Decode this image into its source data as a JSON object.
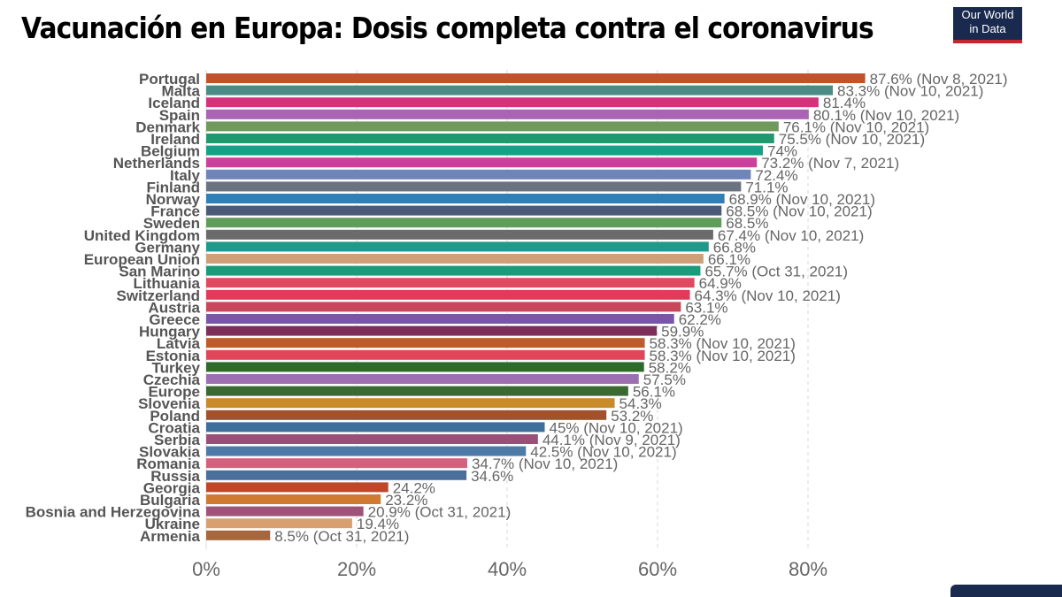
{
  "header": {
    "title": "Vacunación en Europa: Dosis completa contra el coronavirus",
    "logo_line1": "Our World",
    "logo_line2": "in Data"
  },
  "chart_data": {
    "type": "bar",
    "orientation": "horizontal",
    "title": "Vacunación en Europa: Dosis completa contra el coronavirus",
    "xlim": [
      0,
      100
    ],
    "x_ticks": [
      0,
      20,
      40,
      60,
      80
    ],
    "x_tick_labels": [
      "0%",
      "20%",
      "40%",
      "60%",
      "80%"
    ],
    "grid": "vertical dashed",
    "legend": "none",
    "categories": [
      "Portugal",
      "Malta",
      "Iceland",
      "Spain",
      "Denmark",
      "Ireland",
      "Belgium",
      "Netherlands",
      "Italy",
      "Finland",
      "Norway",
      "France",
      "Sweden",
      "United Kingdom",
      "Germany",
      "European Union",
      "San Marino",
      "Lithuania",
      "Switzerland",
      "Austria",
      "Greece",
      "Hungary",
      "Latvia",
      "Estonia",
      "Turkey",
      "Czechia",
      "Europe",
      "Slovenia",
      "Poland",
      "Croatia",
      "Serbia",
      "Slovakia",
      "Romania",
      "Russia",
      "Georgia",
      "Bulgaria",
      "Bosnia and Herzegovina",
      "Ukraine",
      "Armenia"
    ],
    "values": [
      87.6,
      83.3,
      81.4,
      80.1,
      76.1,
      75.5,
      74,
      73.2,
      72.4,
      71.1,
      68.9,
      68.5,
      68.5,
      67.4,
      66.8,
      66.1,
      65.7,
      64.9,
      64.3,
      63.1,
      62.2,
      59.9,
      58.3,
      58.3,
      58.2,
      57.5,
      56.1,
      54.3,
      53.2,
      45,
      44.1,
      42.5,
      34.7,
      34.6,
      24.2,
      23.2,
      20.9,
      19.4,
      8.5
    ],
    "value_labels": [
      "87.6% (Nov 8, 2021)",
      "83.3% (Nov 10, 2021)",
      "81.4%",
      "80.1% (Nov 10, 2021)",
      "76.1% (Nov 10, 2021)",
      "75.5% (Nov 10, 2021)",
      "74%",
      "73.2% (Nov 7, 2021)",
      "72.4%",
      "71.1%",
      "68.9% (Nov 10, 2021)",
      "68.5% (Nov 10, 2021)",
      "68.5%",
      "67.4% (Nov 10, 2021)",
      "66.8%",
      "66.1%",
      "65.7% (Oct 31, 2021)",
      "64.9%",
      "64.3% (Nov 10, 2021)",
      "63.1%",
      "62.2%",
      "59.9%",
      "58.3% (Nov 10, 2021)",
      "58.3% (Nov 10, 2021)",
      "58.2%",
      "57.5%",
      "56.1%",
      "54.3%",
      "53.2%",
      "45% (Nov 10, 2021)",
      "44.1% (Nov 9, 2021)",
      "42.5% (Nov 10, 2021)",
      "34.7% (Nov 10, 2021)",
      "34.6%",
      "24.2%",
      "23.2%",
      "20.9% (Oct 31, 2021)",
      "19.4%",
      "8.5% (Oct 31, 2021)"
    ],
    "colors": [
      "#c0522d",
      "#4a8c85",
      "#d6327c",
      "#a964b4",
      "#6f9a5b",
      "#1f9a6f",
      "#16a085",
      "#cc3f9a",
      "#6f84b8",
      "#6b7280",
      "#2f80b8",
      "#4b5a78",
      "#5f9e5a",
      "#6b6b6b",
      "#1f9a8a",
      "#cf9f77",
      "#1a9b7a",
      "#e04a60",
      "#e23a5a",
      "#c8475a",
      "#7a55a8",
      "#7d2f5a",
      "#c05a2a",
      "#e0455a",
      "#2d6b2d",
      "#9b6fb0",
      "#3a6a32",
      "#c98a2a",
      "#a0522d",
      "#3d6f9a",
      "#9a4f78",
      "#4e7aa8",
      "#d65f7e",
      "#4b6f9b",
      "#c0462a",
      "#cf7a30",
      "#a05378",
      "#d8a070",
      "#a8663c"
    ]
  }
}
